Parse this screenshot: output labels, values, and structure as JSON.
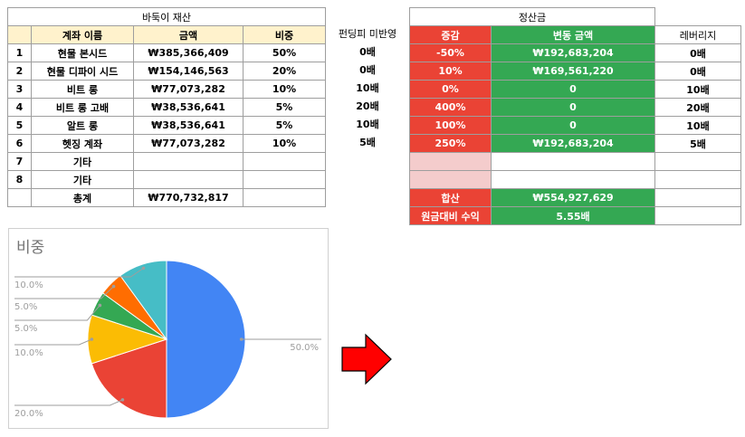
{
  "left_table": {
    "title": "바둑이 재산",
    "headers": [
      "계좌 이름",
      "금액",
      "비중"
    ],
    "rows": [
      {
        "no": "1",
        "name": "현물 본시드",
        "amount": "₩385,366,409",
        "weight": "50%"
      },
      {
        "no": "2",
        "name": "현물 디파이 시드",
        "amount": "₩154,146,563",
        "weight": "20%"
      },
      {
        "no": "3",
        "name": "비트 롱",
        "amount": "₩77,073,282",
        "weight": "10%"
      },
      {
        "no": "4",
        "name": "비트 롱 고배",
        "amount": "₩38,536,641",
        "weight": "5%"
      },
      {
        "no": "5",
        "name": "알트 롱",
        "amount": "₩38,536,641",
        "weight": "5%"
      },
      {
        "no": "6",
        "name": "헷징 계좌",
        "amount": "₩77,073,282",
        "weight": "10%"
      },
      {
        "no": "7",
        "name": "기타",
        "amount": "",
        "weight": ""
      },
      {
        "no": "8",
        "name": "기타",
        "amount": "",
        "weight": ""
      }
    ],
    "total_label": "총계",
    "total_amount": "₩770,732,817"
  },
  "funding": {
    "header": "펀딩피 미반영",
    "values": [
      "0배",
      "0배",
      "10배",
      "20배",
      "10배",
      "5배"
    ]
  },
  "right_table": {
    "title": "정산금",
    "headers": [
      "증감",
      "변동 금액",
      "레버리지"
    ],
    "rows": [
      {
        "change": "-50%",
        "amount": "₩192,683,204",
        "leverage": "0배"
      },
      {
        "change": "10%",
        "amount": "₩169,561,220",
        "leverage": "0배"
      },
      {
        "change": "0%",
        "amount": "0",
        "leverage": "10배"
      },
      {
        "change": "400%",
        "amount": "0",
        "leverage": "20배"
      },
      {
        "change": "100%",
        "amount": "0",
        "leverage": "10배"
      },
      {
        "change": "250%",
        "amount": "₩192,683,204",
        "leverage": "5배"
      }
    ],
    "sum_label": "합산",
    "sum_value": "₩554,927,629",
    "return_label": "원금대비 수익",
    "return_value": "5.55배"
  },
  "chart_data": {
    "type": "pie",
    "title": "비중",
    "slices": [
      {
        "label": "50.0%",
        "value": 50,
        "color": "#4285f4"
      },
      {
        "label": "20.0%",
        "value": 20,
        "color": "#ea4335"
      },
      {
        "label": "10.0%",
        "value": 10,
        "color": "#fbbc04"
      },
      {
        "label": "5.0%",
        "value": 5,
        "color": "#34a853"
      },
      {
        "label": "5.0%",
        "value": 5,
        "color": "#ff6d01"
      },
      {
        "label": "10.0%",
        "value": 10,
        "color": "#46bdc6"
      }
    ]
  },
  "colors": {
    "header_yellow": "#fff2cc",
    "red": "#ea4335",
    "green": "#34a853",
    "pink": "#f4cccc",
    "arrow": "#ff0000"
  },
  "arrow_icon": "right-arrow-icon"
}
